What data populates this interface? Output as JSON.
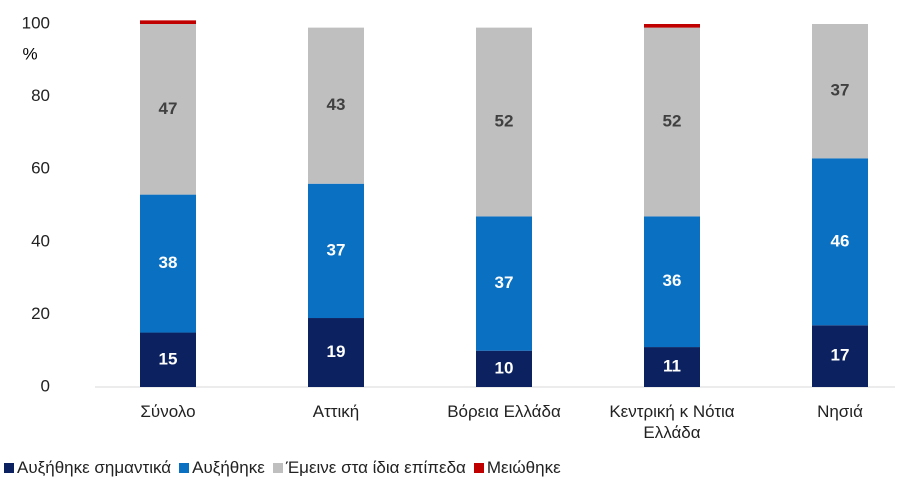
{
  "chart_data": {
    "type": "stacked_bar",
    "y_label": "%",
    "categories": [
      "Σύνολο",
      "Αττική",
      "Βόρεια Ελλάδα",
      "Κεντρική κ Νότια Ελλάδα",
      "Νησιά"
    ],
    "series": [
      {
        "name": "Αυξήθηκε σημαντικά",
        "color": "#0b2160",
        "values": [
          15,
          19,
          10,
          11,
          17
        ]
      },
      {
        "name": "Αυξήθηκε",
        "color": "#0a70c2",
        "values": [
          38,
          37,
          37,
          36,
          46
        ]
      },
      {
        "name": "Έμεινε στα ίδια επίπεδα",
        "color": "#bfbfbf",
        "values": [
          47,
          43,
          52,
          52,
          37
        ]
      },
      {
        "name": "Μειώθηκε",
        "color": "#c00000",
        "values": [
          1,
          0,
          0,
          1,
          0
        ]
      }
    ],
    "ylim": [
      0,
      100
    ],
    "yticks": [
      0,
      20,
      40,
      60,
      80,
      100
    ],
    "grid": false,
    "legend": "bottom"
  }
}
